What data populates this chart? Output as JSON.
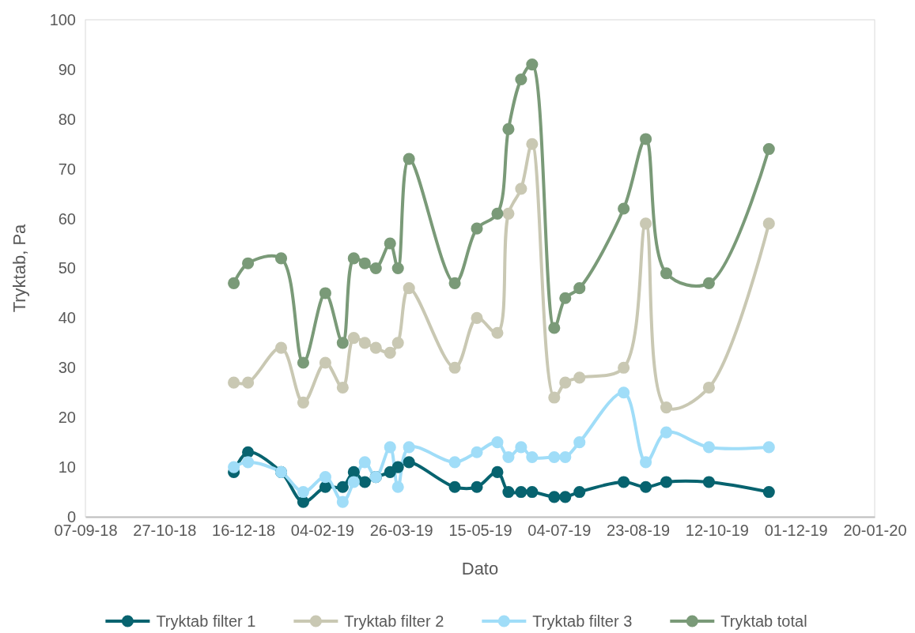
{
  "chart_data": {
    "type": "line",
    "xlabel": "Dato",
    "ylabel": "Tryktab, Pa",
    "x": [
      "2018-12-10",
      "2018-12-19",
      "2019-01-09",
      "2019-01-23",
      "2019-02-06",
      "2019-02-17",
      "2019-02-24",
      "2019-03-03",
      "2019-03-10",
      "2019-03-19",
      "2019-03-24",
      "2019-03-31",
      "2019-04-29",
      "2019-05-13",
      "2019-05-26",
      "2019-06-02",
      "2019-06-10",
      "2019-06-17",
      "2019-07-01",
      "2019-07-08",
      "2019-07-17",
      "2019-08-14",
      "2019-08-28",
      "2019-09-10",
      "2019-10-07",
      "2019-11-14"
    ],
    "series": [
      {
        "name": "Tryktab filter 1",
        "color": "#07636f",
        "values": [
          9,
          13,
          9,
          3,
          6,
          6,
          9,
          7,
          8,
          9,
          10,
          11,
          6,
          6,
          9,
          5,
          5,
          5,
          4,
          4,
          5,
          7,
          6,
          7,
          7,
          5
        ]
      },
      {
        "name": "Tryktab filter 2",
        "color": "#c9c8b3",
        "values": [
          27,
          27,
          34,
          23,
          31,
          26,
          36,
          35,
          34,
          33,
          35,
          46,
          30,
          40,
          37,
          61,
          66,
          75,
          24,
          27,
          28,
          30,
          59,
          22,
          26,
          59
        ]
      },
      {
        "name": "Tryktab filter 3",
        "color": "#a0ddf8",
        "values": [
          10,
          11,
          9,
          5,
          8,
          3,
          7,
          11,
          8,
          14,
          6,
          14,
          11,
          13,
          15,
          12,
          14,
          12,
          12,
          12,
          15,
          25,
          11,
          17,
          14,
          14
        ]
      },
      {
        "name": "Tryktab total",
        "color": "#7a9a78",
        "values": [
          47,
          51,
          52,
          31,
          45,
          35,
          52,
          51,
          50,
          55,
          50,
          72,
          47,
          58,
          61,
          78,
          88,
          91,
          38,
          44,
          46,
          62,
          76,
          49,
          47,
          74
        ]
      }
    ],
    "xlim": [
      "2018-09-07",
      "2020-01-20"
    ],
    "xticks": [
      {
        "value": "2018-09-07",
        "label": "07-09-18"
      },
      {
        "value": "2018-10-27",
        "label": "27-10-18"
      },
      {
        "value": "2018-12-16",
        "label": "16-12-18"
      },
      {
        "value": "2019-02-04",
        "label": "04-02-19"
      },
      {
        "value": "2019-03-26",
        "label": "26-03-19"
      },
      {
        "value": "2019-05-15",
        "label": "15-05-19"
      },
      {
        "value": "2019-07-04",
        "label": "04-07-19"
      },
      {
        "value": "2019-08-23",
        "label": "23-08-19"
      },
      {
        "value": "2019-10-12",
        "label": "12-10-19"
      },
      {
        "value": "2019-12-01",
        "label": "01-12-19"
      },
      {
        "value": "2020-01-20",
        "label": "20-01-20"
      }
    ],
    "ylim": [
      0,
      100
    ],
    "yticks": [
      0,
      10,
      20,
      30,
      40,
      50,
      60,
      70,
      80,
      90,
      100
    ],
    "grid": false,
    "legend": "bottom",
    "marker": "circle",
    "line_style": "solid"
  }
}
